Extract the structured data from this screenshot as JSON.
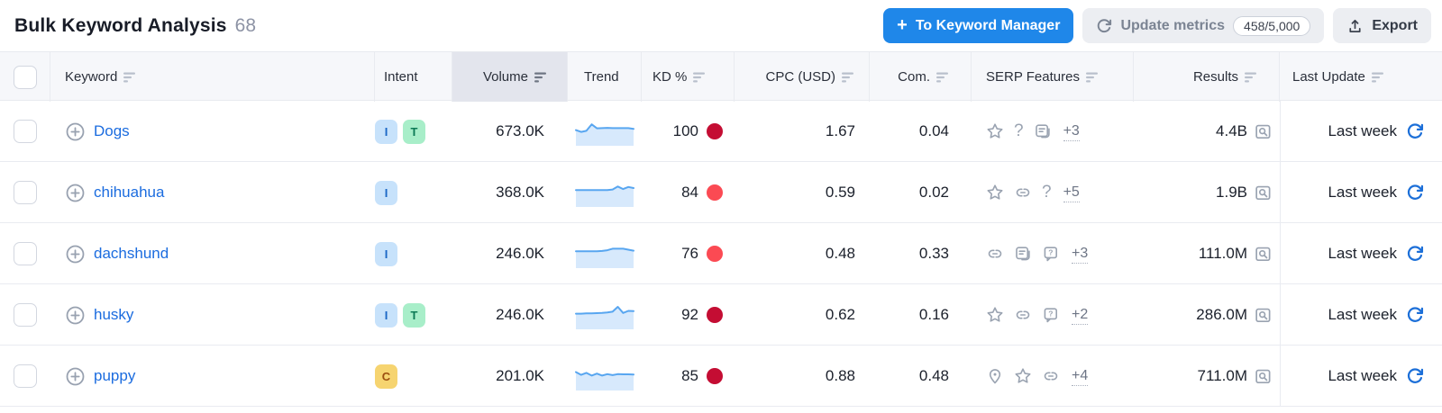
{
  "header": {
    "title": "Bulk Keyword Analysis",
    "count": "68",
    "to_keyword_manager_label": "To Keyword Manager",
    "update_metrics_label": "Update metrics",
    "update_quota": "458/5,000",
    "export_label": "Export"
  },
  "colors": {
    "primary_button": "#1f87e9",
    "link_blue": "#1b6cdf",
    "refresh_blue": "#1c6fd8",
    "kd_red_dark": "#c40d33",
    "kd_red_light": "#fb4a53",
    "sparkline_line": "#58a6f0",
    "sparkline_fill": "#d7e9fc"
  },
  "table": {
    "columns": [
      {
        "key": "check",
        "label": "",
        "sortable": false
      },
      {
        "key": "keyword",
        "label": "Keyword",
        "sortable": true
      },
      {
        "key": "intent",
        "label": "Intent",
        "sortable": false
      },
      {
        "key": "volume",
        "label": "Volume",
        "sortable": true,
        "sorted": true
      },
      {
        "key": "trend",
        "label": "Trend",
        "sortable": false
      },
      {
        "key": "kd",
        "label": "KD %",
        "sortable": true
      },
      {
        "key": "cpc",
        "label": "CPC (USD)",
        "sortable": true
      },
      {
        "key": "com",
        "label": "Com.",
        "sortable": true
      },
      {
        "key": "serp",
        "label": "SERP Features",
        "sortable": true
      },
      {
        "key": "results",
        "label": "Results",
        "sortable": true
      },
      {
        "key": "updated",
        "label": "Last Update",
        "sortable": true
      }
    ],
    "intent_styles": {
      "I": {
        "bg": "#c7e2fb",
        "color": "#1a67c6"
      },
      "T": {
        "bg": "#a8eec9",
        "color": "#0c7a55"
      },
      "C": {
        "bg": "#f6d470",
        "color": "#9c4f10"
      }
    },
    "rows": [
      {
        "keyword": "Dogs",
        "intents": [
          "I",
          "T"
        ],
        "volume": "673.0K",
        "trend": [
          0.55,
          0.48,
          0.52,
          0.78,
          0.62,
          0.63,
          0.64,
          0.63,
          0.63,
          0.63,
          0.63,
          0.6
        ],
        "kd": "100",
        "kd_color": "#c40d33",
        "cpc": "1.67",
        "com": "0.04",
        "serp_icons": [
          "star-icon",
          "question-icon",
          "snippet-icon"
        ],
        "serp_more": "+3",
        "results": "4.4B",
        "updated": "Last week"
      },
      {
        "keyword": "chihuahua",
        "intents": [
          "I"
        ],
        "volume": "368.0K",
        "trend": [
          0.6,
          0.6,
          0.6,
          0.6,
          0.6,
          0.6,
          0.6,
          0.62,
          0.74,
          0.64,
          0.72,
          0.68
        ],
        "kd": "84",
        "kd_color": "#fb4a53",
        "cpc": "0.59",
        "com": "0.02",
        "serp_icons": [
          "star-icon",
          "link-icon",
          "question-icon"
        ],
        "serp_more": "+5",
        "results": "1.9B",
        "updated": "Last week"
      },
      {
        "keyword": "dachshund",
        "intents": [
          "I"
        ],
        "volume": "246.0K",
        "trend": [
          0.6,
          0.6,
          0.6,
          0.6,
          0.6,
          0.61,
          0.64,
          0.7,
          0.7,
          0.7,
          0.66,
          0.62
        ],
        "kd": "76",
        "kd_color": "#fb4a53",
        "cpc": "0.48",
        "com": "0.33",
        "serp_icons": [
          "link-icon",
          "snippet-icon",
          "faq-icon"
        ],
        "serp_more": "+3",
        "results": "111.0M",
        "updated": "Last week"
      },
      {
        "keyword": "husky",
        "intents": [
          "I",
          "T"
        ],
        "volume": "246.0K",
        "trend": [
          0.55,
          0.55,
          0.56,
          0.56,
          0.57,
          0.58,
          0.6,
          0.63,
          0.82,
          0.58,
          0.66,
          0.65
        ],
        "kd": "92",
        "kd_color": "#c40d33",
        "cpc": "0.62",
        "com": "0.16",
        "serp_icons": [
          "star-icon",
          "link-icon",
          "faq-icon"
        ],
        "serp_more": "+2",
        "results": "286.0M",
        "updated": "Last week"
      },
      {
        "keyword": "puppy",
        "intents": [
          "C"
        ],
        "volume": "201.0K",
        "trend": [
          0.66,
          0.55,
          0.63,
          0.52,
          0.6,
          0.52,
          0.58,
          0.54,
          0.58,
          0.57,
          0.57,
          0.56
        ],
        "kd": "85",
        "kd_color": "#c40d33",
        "cpc": "0.88",
        "com": "0.48",
        "serp_icons": [
          "pin-icon",
          "star-icon",
          "link-icon"
        ],
        "serp_more": "+4",
        "results": "711.0M",
        "updated": "Last week"
      }
    ]
  }
}
